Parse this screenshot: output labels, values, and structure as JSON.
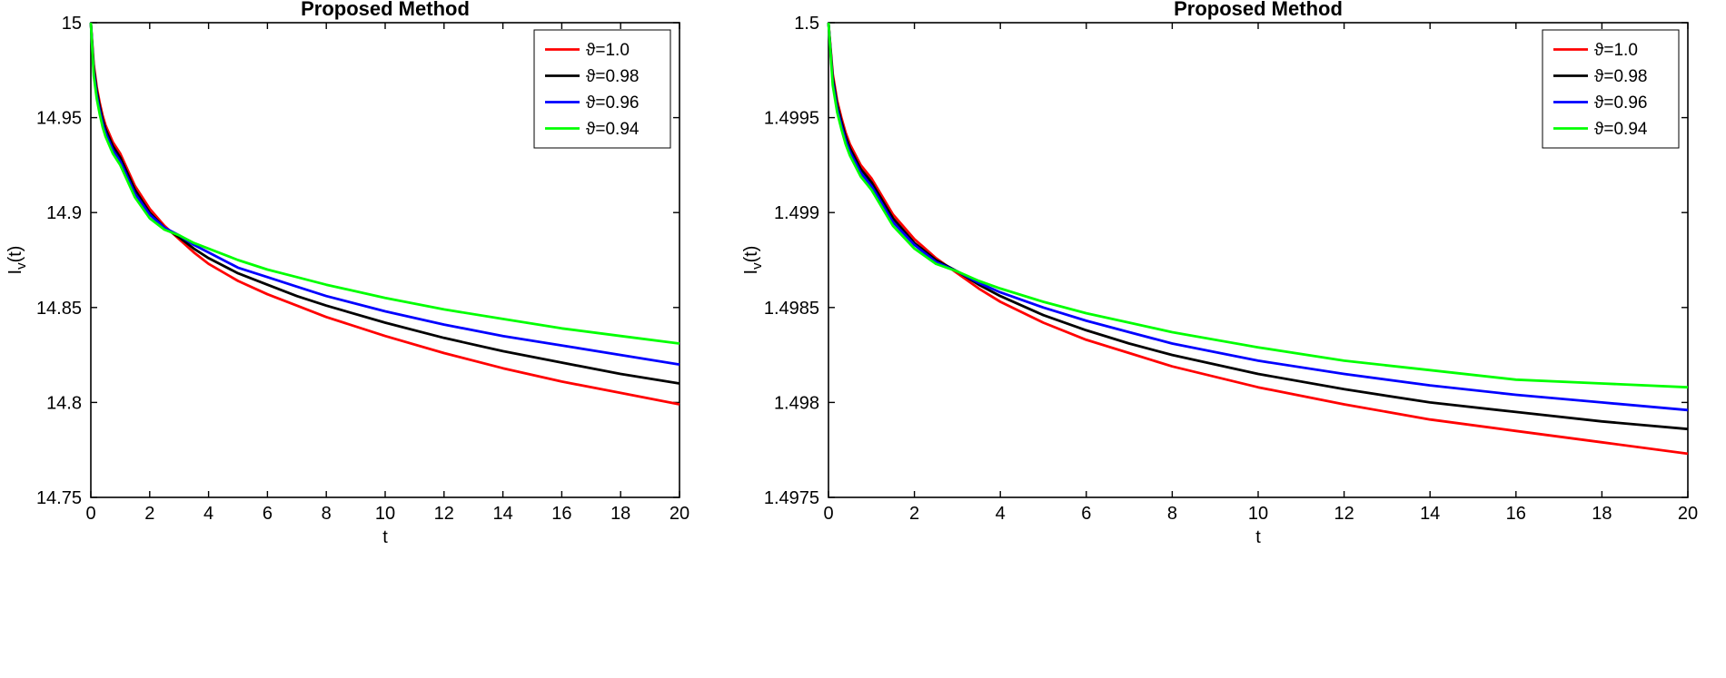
{
  "figure": {
    "background": "#ffffff"
  },
  "chart_data": [
    {
      "type": "line",
      "title": "Proposed Method",
      "xlabel": "t",
      "ylabel": "I_v(t)",
      "ylabel_parts": {
        "base": "I",
        "sub": "v",
        "rest": "(t)"
      },
      "xlim": [
        0,
        20
      ],
      "ylim": [
        14.75,
        15
      ],
      "grid": false,
      "legend": {
        "position": "northeast"
      },
      "xticks": {
        "values": [
          0,
          2,
          4,
          6,
          8,
          10,
          12,
          14,
          16,
          18,
          20
        ],
        "labels": [
          "0",
          "2",
          "4",
          "6",
          "8",
          "10",
          "12",
          "14",
          "16",
          "18",
          "20"
        ]
      },
      "yticks": {
        "values": [
          14.75,
          14.8,
          14.85,
          14.9,
          14.95,
          15
        ],
        "labels": [
          "14.75",
          "14.8",
          "14.85",
          "14.9",
          "14.95",
          "15"
        ]
      },
      "x": [
        0,
        0.1,
        0.2,
        0.3,
        0.4,
        0.5,
        0.75,
        1,
        1.5,
        2,
        2.5,
        3,
        3.5,
        4,
        5,
        6,
        7,
        8,
        10,
        12,
        14,
        16,
        18,
        20
      ],
      "series": [
        {
          "name": "ϑ=1.0",
          "color": "#ff0000",
          "values": [
            15.0,
            14.978,
            14.966,
            14.958,
            14.951,
            14.946,
            14.937,
            14.931,
            14.914,
            14.902,
            14.893,
            14.886,
            14.879,
            14.873,
            14.864,
            14.857,
            14.851,
            14.845,
            14.835,
            14.826,
            14.818,
            14.811,
            14.805,
            14.799
          ]
        },
        {
          "name": "ϑ=0.98",
          "color": "#000000",
          "values": [
            15.0,
            14.976,
            14.964,
            14.956,
            14.949,
            14.944,
            14.935,
            14.929,
            14.912,
            14.9,
            14.892,
            14.887,
            14.881,
            14.876,
            14.868,
            14.862,
            14.856,
            14.851,
            14.842,
            14.834,
            14.827,
            14.821,
            14.815,
            14.81
          ]
        },
        {
          "name": "ϑ=0.96",
          "color": "#0000ff",
          "values": [
            15.0,
            14.974,
            14.962,
            14.954,
            14.947,
            14.942,
            14.933,
            14.927,
            14.91,
            14.899,
            14.892,
            14.888,
            14.883,
            14.879,
            14.871,
            14.866,
            14.861,
            14.856,
            14.848,
            14.841,
            14.835,
            14.83,
            14.825,
            14.82
          ]
        },
        {
          "name": "ϑ=0.94",
          "color": "#00ff00",
          "values": [
            15.0,
            14.972,
            14.96,
            14.952,
            14.945,
            14.94,
            14.931,
            14.925,
            14.908,
            14.897,
            14.891,
            14.888,
            14.884,
            14.881,
            14.875,
            14.87,
            14.866,
            14.862,
            14.855,
            14.849,
            14.844,
            14.839,
            14.835,
            14.831
          ]
        }
      ]
    },
    {
      "type": "line",
      "title": "Proposed Method",
      "xlabel": "t",
      "ylabel": "I_v(t)",
      "ylabel_parts": {
        "base": "I",
        "sub": "v",
        "rest": "(t)"
      },
      "xlim": [
        0,
        20
      ],
      "ylim": [
        1.4975,
        1.5
      ],
      "grid": false,
      "legend": {
        "position": "northeast"
      },
      "xticks": {
        "values": [
          0,
          2,
          4,
          6,
          8,
          10,
          12,
          14,
          16,
          18,
          20
        ],
        "labels": [
          "0",
          "2",
          "4",
          "6",
          "8",
          "10",
          "12",
          "14",
          "16",
          "18",
          "20"
        ]
      },
      "yticks": {
        "values": [
          1.4975,
          1.498,
          1.4985,
          1.499,
          1.4995,
          1.5
        ],
        "labels": [
          "1.4975",
          "1.498",
          "1.4985",
          "1.499",
          "1.4995",
          "1.5"
        ]
      },
      "x": [
        0,
        0.1,
        0.2,
        0.3,
        0.4,
        0.5,
        0.75,
        1,
        1.5,
        2,
        2.5,
        3,
        3.5,
        4,
        5,
        6,
        7,
        8,
        10,
        12,
        14,
        16,
        18,
        20
      ],
      "series": [
        {
          "name": "ϑ=1.0",
          "color": "#ff0000",
          "values": [
            1.5,
            1.49973,
            1.49959,
            1.4995,
            1.49942,
            1.49936,
            1.49925,
            1.49918,
            1.49899,
            1.49886,
            1.49876,
            1.49868,
            1.4986,
            1.49853,
            1.49842,
            1.49833,
            1.49826,
            1.49819,
            1.49808,
            1.49799,
            1.49791,
            1.49785,
            1.49779,
            1.49773
          ]
        },
        {
          "name": "ϑ=0.98",
          "color": "#000000",
          "values": [
            1.5,
            1.49971,
            1.49957,
            1.49948,
            1.4994,
            1.49934,
            1.49923,
            1.49916,
            1.49897,
            1.49884,
            1.49875,
            1.49869,
            1.49862,
            1.49856,
            1.49846,
            1.49838,
            1.49831,
            1.49825,
            1.49815,
            1.49807,
            1.498,
            1.49795,
            1.4979,
            1.49786
          ]
        },
        {
          "name": "ϑ=0.96",
          "color": "#0000ff",
          "values": [
            1.5,
            1.49969,
            1.49955,
            1.49946,
            1.49938,
            1.49932,
            1.49921,
            1.49914,
            1.49895,
            1.49883,
            1.49874,
            1.49869,
            1.49863,
            1.49858,
            1.4985,
            1.49843,
            1.49837,
            1.49831,
            1.49822,
            1.49815,
            1.49809,
            1.49804,
            1.498,
            1.49796
          ]
        },
        {
          "name": "ϑ=0.94",
          "color": "#00ff00",
          "values": [
            1.5,
            1.49967,
            1.49953,
            1.49944,
            1.49936,
            1.4993,
            1.49919,
            1.49912,
            1.49893,
            1.49881,
            1.49873,
            1.49869,
            1.49864,
            1.4986,
            1.49853,
            1.49847,
            1.49842,
            1.49837,
            1.49829,
            1.49822,
            1.49817,
            1.49812,
            1.4981,
            1.49808
          ]
        }
      ]
    }
  ]
}
